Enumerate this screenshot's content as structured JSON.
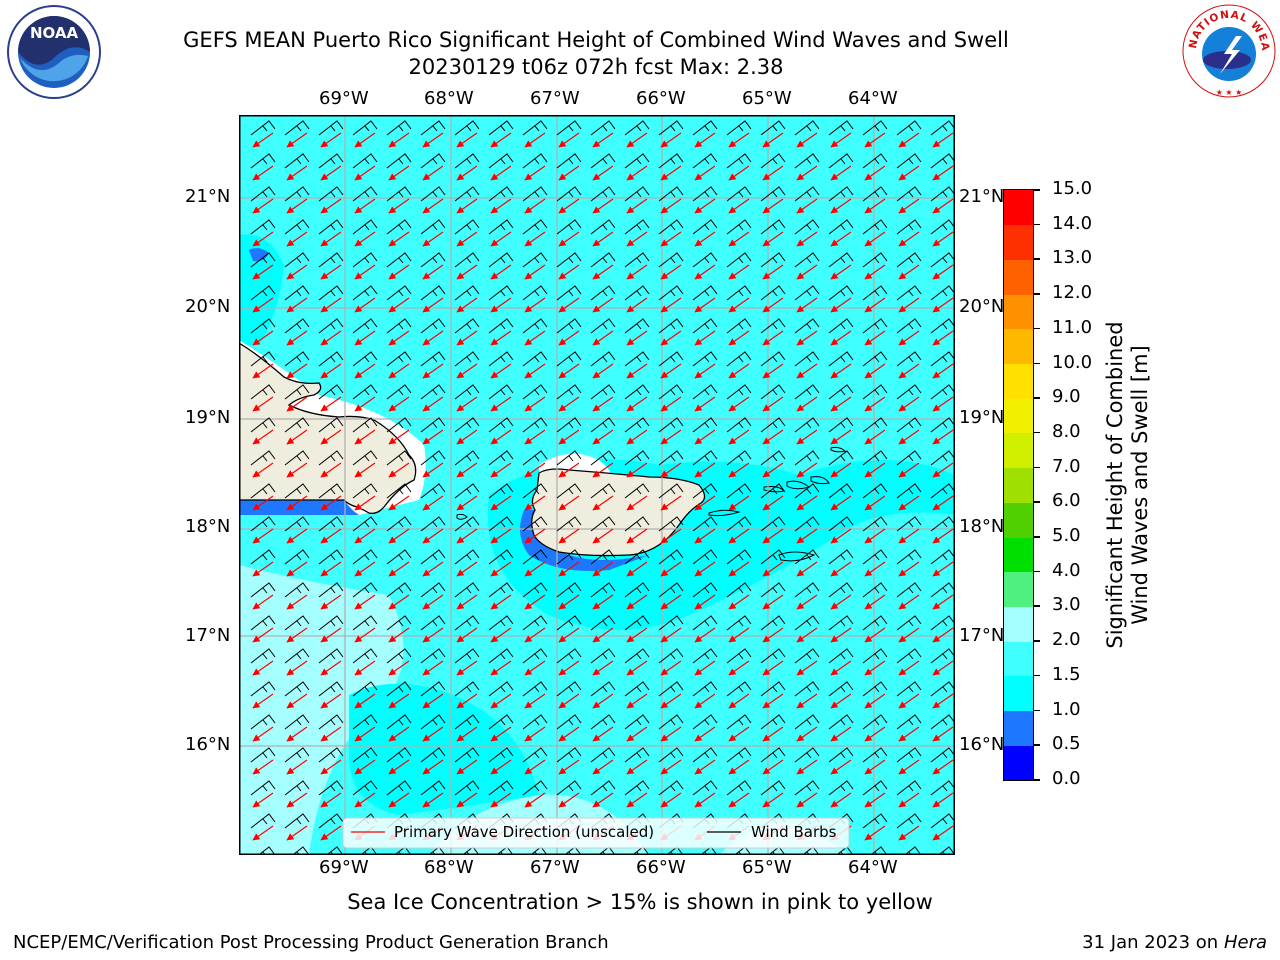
{
  "title": {
    "line1": "GEFS MEAN Puerto Rico Significant Height of Combined Wind Waves and Swell",
    "line2": "20230129 t06z 072h fcst   Max: 2.38"
  },
  "map": {
    "lon_labels": [
      "69°W",
      "68°W",
      "67°W",
      "66°W",
      "65°W",
      "64°W"
    ],
    "lat_labels": [
      "21°N",
      "20°N",
      "19°N",
      "18°N",
      "17°N",
      "16°N"
    ],
    "legend": {
      "wave_dir": "Primary Wave Direction (unscaled)",
      "wind_barbs": "Wind Barbs",
      "wave_color": "#ff0000",
      "barb_color": "#000000"
    },
    "land_color": "#efedde"
  },
  "colorbar": {
    "label_line1": "Significant Height of Combined",
    "label_line2": "Wind Waves and Swell [m]",
    "ticks": [
      "0.0",
      "0.5",
      "1.0",
      "1.5",
      "2.0",
      "3.0",
      "4.0",
      "5.0",
      "6.0",
      "7.0",
      "8.0",
      "9.0",
      "10.0",
      "11.0",
      "12.0",
      "13.0",
      "14.0",
      "15.0"
    ],
    "colors": [
      "#0000ff",
      "#1e78ff",
      "#00ffff",
      "#40ffff",
      "#a6ffff",
      "#50f080",
      "#00e000",
      "#50d000",
      "#a0e000",
      "#d0f000",
      "#f0f000",
      "#ffe000",
      "#ffb800",
      "#ff9000",
      "#ff6000",
      "#ff3000",
      "#ff0000"
    ]
  },
  "caption": "Sea Ice Concentration > 15% is shown in pink to yellow",
  "footer": {
    "left": "NCEP/EMC/Verification Post Processing Product Generation Branch",
    "right_prefix": "31 Jan 2023 on ",
    "right_host": "Hera"
  },
  "logos": {
    "noaa": "NOAA",
    "nws": "NATIONAL WEATHER SERVICE"
  }
}
